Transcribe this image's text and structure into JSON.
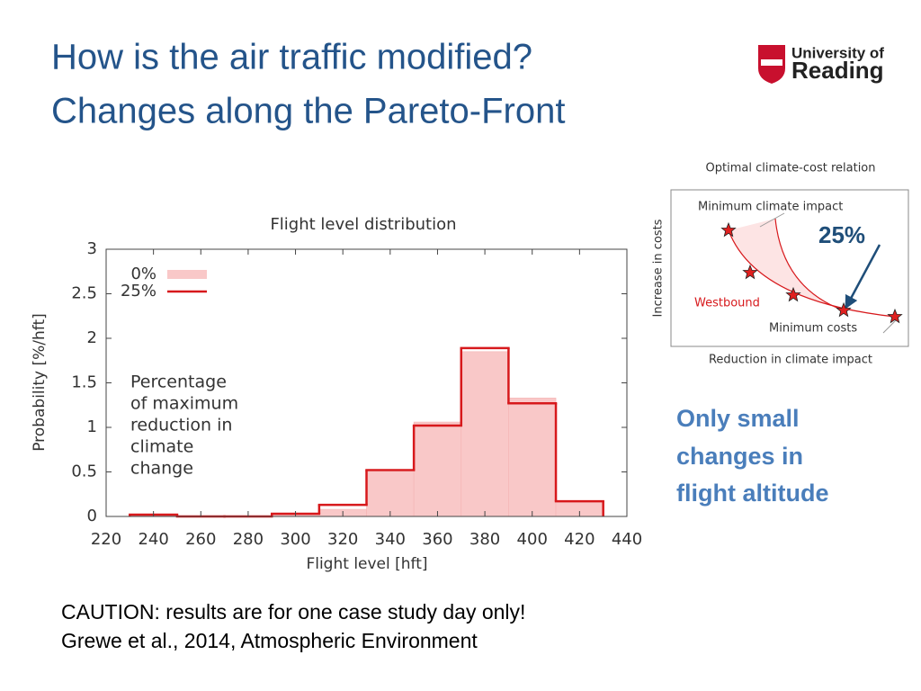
{
  "slide": {
    "title_lines": [
      "How is the air traffic modified?",
      "Changes along the Pareto-Front"
    ],
    "logo_lines": [
      "University of",
      "Reading"
    ],
    "conclusion_lines": [
      "Only small",
      "changes in",
      "flight altitude"
    ],
    "caution_lines": [
      "CAUTION: results are for one case study day only!",
      "Grewe et al., 2014, Atmospheric Environment"
    ]
  },
  "diagram": {
    "title": "Optimal climate-cost relation",
    "y_label": "Increase in costs",
    "x_label": "Reduction in climate impact",
    "label_min_climate": "Minimum climate impact",
    "label_min_costs": "Minimum costs",
    "label_route": "Westbound",
    "label_arrow": "25%"
  },
  "chart_data": {
    "type": "histogram",
    "title": "Flight level distribution",
    "x_label": "Flight level [hft]",
    "y_label": "Probability [%/hft]",
    "bins": [
      230,
      250,
      270,
      290,
      310,
      330,
      350,
      370,
      390,
      410,
      430
    ],
    "series": [
      {
        "name": "0%",
        "color": "#f9c8c8",
        "values": [
          0.02,
          0,
          0,
          0.02,
          0.08,
          0.5,
          1.06,
          1.85,
          1.33,
          0.17
        ]
      },
      {
        "name": "25%",
        "color": "#d7191c",
        "values": [
          0.02,
          0,
          0,
          0.03,
          0.13,
          0.52,
          1.02,
          1.89,
          1.27,
          0.17
        ]
      }
    ],
    "annotation_lines": [
      "Percentage",
      "of maximum",
      "reduction in",
      "climate",
      "change"
    ],
    "xlim": [
      220,
      440
    ],
    "xticks": [
      220,
      240,
      260,
      280,
      300,
      320,
      340,
      360,
      380,
      400,
      420,
      440
    ],
    "ylim": [
      0,
      3
    ],
    "yticks": [
      0,
      0.5,
      1,
      1.5,
      2,
      2.5,
      3
    ],
    "legend": "upper left"
  }
}
